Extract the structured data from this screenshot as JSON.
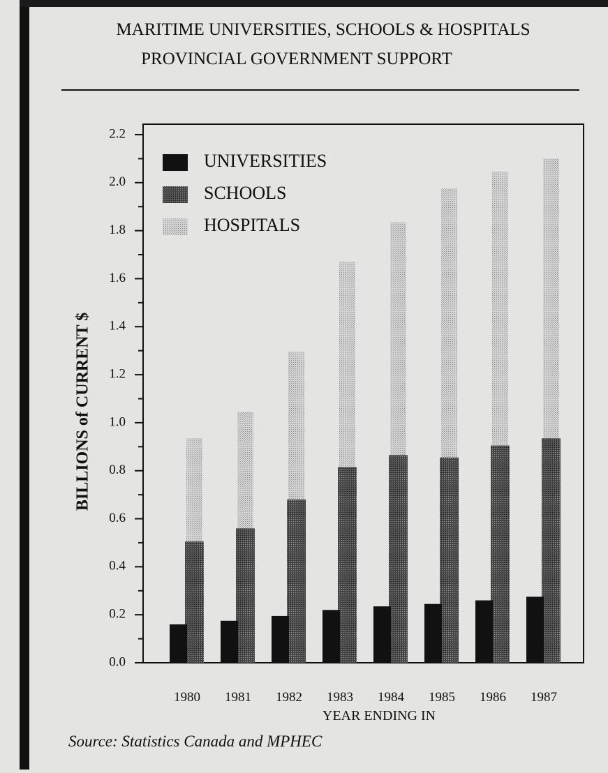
{
  "chart_data": {
    "type": "bar",
    "title": "MARITIME UNIVERSITIES, SCHOOLS & HOSPITALS",
    "subtitle": "PROVINCIAL GOVERNMENT SUPPORT",
    "y_label": "BILLIONS of CURRENT $",
    "x_label": "YEAR ENDING IN",
    "source": "Source: Statistics Canada and MPHEC",
    "categories": [
      "1980",
      "1981",
      "1982",
      "1983",
      "1984",
      "1985",
      "1986",
      "1987"
    ],
    "series": [
      {
        "name": "UNIVERSITIES",
        "color": "#111111",
        "values": [
          0.16,
          0.175,
          0.195,
          0.22,
          0.235,
          0.245,
          0.26,
          0.275
        ]
      },
      {
        "name": "SCHOOLS",
        "color": "#555555",
        "values": [
          0.505,
          0.56,
          0.68,
          0.815,
          0.865,
          0.855,
          0.905,
          0.935
        ]
      },
      {
        "name": "HOSPITALS",
        "color": "#bdbdbd",
        "values": [
          0.935,
          1.045,
          1.295,
          1.67,
          1.835,
          1.975,
          2.045,
          2.1
        ]
      }
    ],
    "ylim": [
      0,
      2.2
    ],
    "yticks": [
      {
        "value": 0,
        "label": "0.0"
      },
      0.2,
      0.4,
      0.6,
      0.8,
      {
        "value": 1,
        "label": "1.0"
      },
      1.2,
      1.4,
      1.6,
      1.8,
      {
        "value": 2,
        "label": "2.0"
      },
      2.2
    ],
    "yminorticks": [
      0.1,
      0.3,
      0.5,
      0.7,
      0.9,
      1.1,
      1.3,
      1.5,
      1.7,
      1.9,
      2.1
    ],
    "legend": "upper left",
    "grid": false
  }
}
